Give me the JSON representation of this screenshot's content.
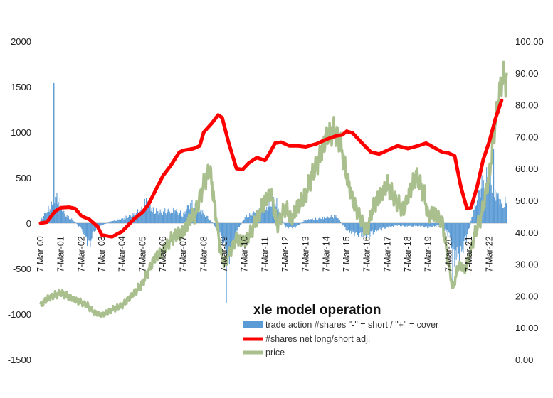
{
  "chart_data": {
    "type": "bar+line",
    "title": "xle model operation",
    "x_tick_labels": [
      "7-Mar-00",
      "7-Mar-01",
      "7-Mar-02",
      "7-Mar-03",
      "7-Mar-04",
      "7-Mar-05",
      "7-Mar-06",
      "7-Mar-07",
      "7-Mar-08",
      "7-Mar-09",
      "7-Mar-10",
      "7-Mar-11",
      "7-Mar-12",
      "7-Mar-13",
      "7-Mar-14",
      "7-Mar-15",
      "7-Mar-16",
      "7-Mar-17",
      "7-Mar-18",
      "7-Mar-19",
      "7-Mar-20",
      "7-Mar-21",
      "7-Mar-22"
    ],
    "y_left": {
      "min": -1500,
      "max": 2000,
      "ticks": [
        "2000",
        "1500",
        "1000",
        "500",
        "0",
        "-500",
        "-1000",
        "-1500"
      ]
    },
    "y_right": {
      "min": 0,
      "max": 100,
      "ticks": [
        "100.00",
        "90.00",
        "80.00",
        "70.00",
        "60.00",
        "50.00",
        "40.00",
        "30.00",
        "20.00",
        "10.00",
        "0.00"
      ]
    },
    "colors": {
      "trade": "#5b9bd5",
      "net": "#ff0000",
      "price": "#a9c08e"
    },
    "series": [
      {
        "name": "trade action #shares \"-\" = short / \"+\" = cover",
        "type": "bar",
        "axis": "left",
        "points": [
          [
            2000.0,
            50
          ],
          [
            2000.4,
            200
          ],
          [
            2000.8,
            380
          ],
          [
            2001.2,
            120
          ],
          [
            2001.6,
            40
          ],
          [
            2002.0,
            -80
          ],
          [
            2002.2,
            -200
          ],
          [
            2002.4,
            -320
          ],
          [
            2002.6,
            -120
          ],
          [
            2003.0,
            -30
          ],
          [
            2003.5,
            30
          ],
          [
            2004.0,
            60
          ],
          [
            2004.5,
            120
          ],
          [
            2005.0,
            200
          ],
          [
            2005.2,
            350
          ],
          [
            2005.5,
            180
          ],
          [
            2006.0,
            160
          ],
          [
            2006.5,
            200
          ],
          [
            2007.0,
            120
          ],
          [
            2007.3,
            280
          ],
          [
            2007.6,
            240
          ],
          [
            2008.0,
            150
          ],
          [
            2008.5,
            -20
          ],
          [
            2009.0,
            -300
          ],
          [
            2009.2,
            -600
          ],
          [
            2009.5,
            -200
          ],
          [
            2010.0,
            80
          ],
          [
            2010.5,
            160
          ],
          [
            2011.0,
            220
          ],
          [
            2011.5,
            340
          ],
          [
            2012.0,
            -60
          ],
          [
            2012.5,
            -60
          ],
          [
            2013.0,
            50
          ],
          [
            2013.5,
            60
          ],
          [
            2014.0,
            80
          ],
          [
            2014.5,
            100
          ],
          [
            2015.0,
            -100
          ],
          [
            2015.5,
            -160
          ],
          [
            2016.0,
            -180
          ],
          [
            2016.5,
            -100
          ],
          [
            2017.0,
            -60
          ],
          [
            2017.5,
            -30
          ],
          [
            2018.0,
            -50
          ],
          [
            2018.5,
            -40
          ],
          [
            2019.0,
            -60
          ],
          [
            2019.5,
            -40
          ],
          [
            2020.0,
            -150
          ],
          [
            2020.3,
            -500
          ],
          [
            2020.6,
            -450
          ],
          [
            2021.0,
            -100
          ],
          [
            2021.3,
            300
          ],
          [
            2021.6,
            550
          ],
          [
            2022.0,
            700
          ],
          [
            2022.3,
            450
          ],
          [
            2022.6,
            300
          ]
        ]
      },
      {
        "name": "#shares net long/short adj.",
        "type": "line",
        "axis": "left",
        "points": [
          [
            2000.0,
            0
          ],
          [
            2000.3,
            10
          ],
          [
            2000.7,
            130
          ],
          [
            2001.0,
            170
          ],
          [
            2001.4,
            175
          ],
          [
            2001.7,
            160
          ],
          [
            2002.0,
            80
          ],
          [
            2002.4,
            40
          ],
          [
            2002.8,
            -40
          ],
          [
            2003.0,
            -130
          ],
          [
            2003.5,
            -150
          ],
          [
            2004.0,
            -90
          ],
          [
            2004.3,
            -20
          ],
          [
            2004.6,
            50
          ],
          [
            2005.0,
            120
          ],
          [
            2005.3,
            210
          ],
          [
            2005.7,
            390
          ],
          [
            2006.0,
            520
          ],
          [
            2006.4,
            640
          ],
          [
            2006.8,
            780
          ],
          [
            2007.0,
            800
          ],
          [
            2007.5,
            820
          ],
          [
            2007.8,
            850
          ],
          [
            2008.0,
            1000
          ],
          [
            2008.4,
            1100
          ],
          [
            2008.7,
            1190
          ],
          [
            2008.9,
            1160
          ],
          [
            2009.2,
            900
          ],
          [
            2009.6,
            600
          ],
          [
            2009.9,
            590
          ],
          [
            2010.2,
            660
          ],
          [
            2010.6,
            720
          ],
          [
            2011.0,
            690
          ],
          [
            2011.2,
            760
          ],
          [
            2011.5,
            880
          ],
          [
            2011.8,
            890
          ],
          [
            2012.2,
            850
          ],
          [
            2012.6,
            850
          ],
          [
            2013.0,
            840
          ],
          [
            2013.5,
            870
          ],
          [
            2014.0,
            920
          ],
          [
            2014.5,
            960
          ],
          [
            2014.8,
            970
          ],
          [
            2015.0,
            1010
          ],
          [
            2015.3,
            990
          ],
          [
            2015.8,
            870
          ],
          [
            2016.2,
            780
          ],
          [
            2016.6,
            760
          ],
          [
            2017.0,
            800
          ],
          [
            2017.5,
            850
          ],
          [
            2018.0,
            820
          ],
          [
            2018.5,
            850
          ],
          [
            2018.9,
            880
          ],
          [
            2019.3,
            830
          ],
          [
            2019.7,
            780
          ],
          [
            2020.0,
            770
          ],
          [
            2020.3,
            740
          ],
          [
            2020.6,
            400
          ],
          [
            2020.9,
            160
          ],
          [
            2021.1,
            170
          ],
          [
            2021.4,
            400
          ],
          [
            2021.7,
            700
          ],
          [
            2022.0,
            900
          ],
          [
            2022.3,
            1150
          ],
          [
            2022.6,
            1350
          ]
        ]
      },
      {
        "name": "price",
        "type": "line",
        "axis": "right",
        "points": [
          [
            2000.0,
            17
          ],
          [
            2000.3,
            19
          ],
          [
            2000.6,
            20
          ],
          [
            2001.0,
            21
          ],
          [
            2001.3,
            20
          ],
          [
            2001.6,
            19
          ],
          [
            2002.0,
            18
          ],
          [
            2002.3,
            17
          ],
          [
            2002.6,
            15
          ],
          [
            2003.0,
            14
          ],
          [
            2003.3,
            15
          ],
          [
            2003.6,
            16
          ],
          [
            2004.0,
            17
          ],
          [
            2004.3,
            19
          ],
          [
            2004.6,
            21
          ],
          [
            2005.0,
            24
          ],
          [
            2005.3,
            28
          ],
          [
            2005.6,
            32
          ],
          [
            2006.0,
            34
          ],
          [
            2006.3,
            37
          ],
          [
            2006.6,
            39
          ],
          [
            2007.0,
            40
          ],
          [
            2007.3,
            44
          ],
          [
            2007.6,
            46
          ],
          [
            2008.0,
            55
          ],
          [
            2008.3,
            60
          ],
          [
            2008.5,
            50
          ],
          [
            2008.8,
            35
          ],
          [
            2009.0,
            30
          ],
          [
            2009.3,
            34
          ],
          [
            2009.6,
            38
          ],
          [
            2010.0,
            37
          ],
          [
            2010.3,
            40
          ],
          [
            2010.6,
            44
          ],
          [
            2011.0,
            50
          ],
          [
            2011.3,
            52
          ],
          [
            2011.6,
            42
          ],
          [
            2012.0,
            48
          ],
          [
            2012.3,
            44
          ],
          [
            2012.6,
            48
          ],
          [
            2013.0,
            52
          ],
          [
            2013.3,
            58
          ],
          [
            2013.6,
            62
          ],
          [
            2014.0,
            70
          ],
          [
            2014.4,
            72
          ],
          [
            2014.7,
            68
          ],
          [
            2015.0,
            58
          ],
          [
            2015.3,
            50
          ],
          [
            2015.7,
            44
          ],
          [
            2016.0,
            40
          ],
          [
            2016.3,
            48
          ],
          [
            2016.7,
            52
          ],
          [
            2017.0,
            55
          ],
          [
            2017.4,
            50
          ],
          [
            2017.8,
            47
          ],
          [
            2018.0,
            51
          ],
          [
            2018.4,
            58
          ],
          [
            2018.8,
            52
          ],
          [
            2019.0,
            45
          ],
          [
            2019.3,
            46
          ],
          [
            2019.7,
            43
          ],
          [
            2020.0,
            30
          ],
          [
            2020.2,
            22
          ],
          [
            2020.5,
            30
          ],
          [
            2020.8,
            28
          ],
          [
            2021.0,
            32
          ],
          [
            2021.3,
            40
          ],
          [
            2021.6,
            45
          ],
          [
            2022.0,
            58
          ],
          [
            2022.3,
            75
          ],
          [
            2022.6,
            88
          ]
        ]
      }
    ]
  }
}
